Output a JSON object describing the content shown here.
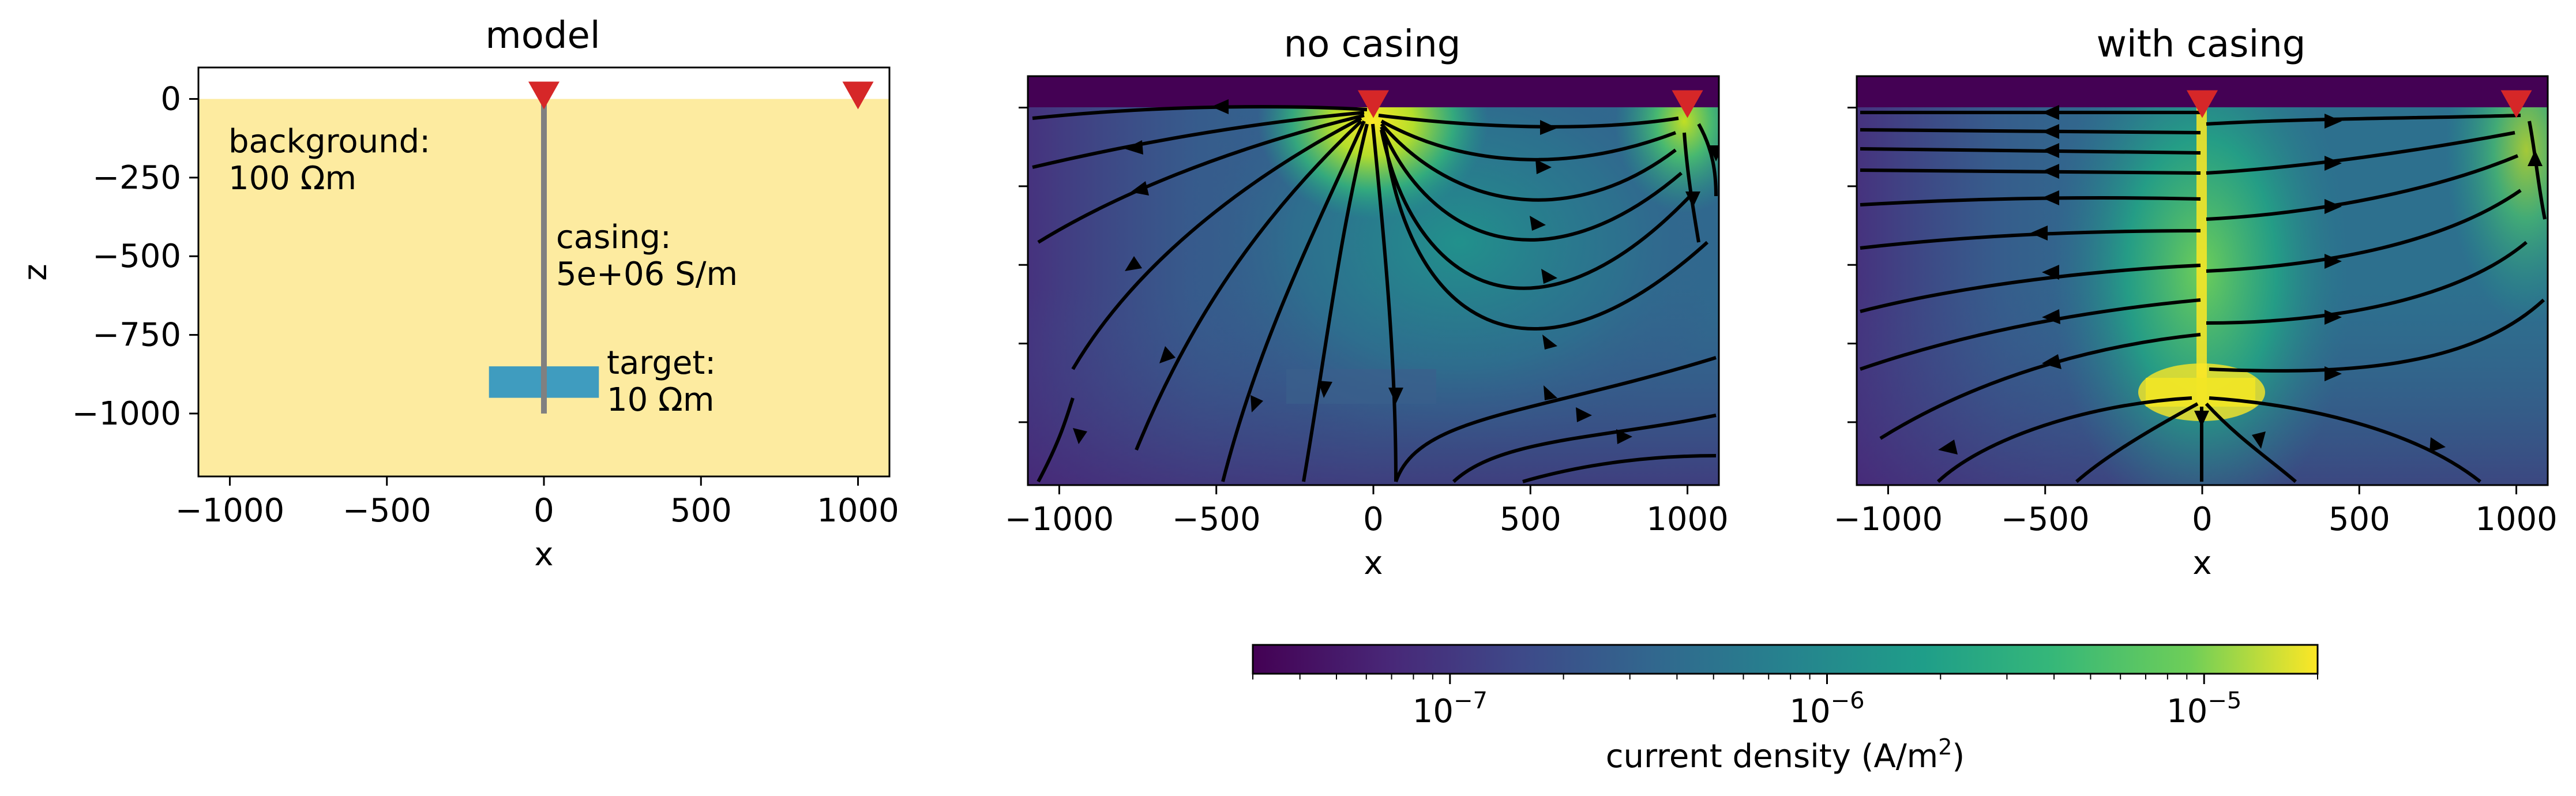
{
  "chart_data": [
    {
      "id": "model",
      "type": "other",
      "title": "model",
      "xlabel": "x",
      "ylabel": "z",
      "xlim": [
        -1100,
        1100
      ],
      "ylim": [
        -1200,
        100
      ],
      "xticks": [
        -1000,
        -500,
        0,
        500,
        1000
      ],
      "yticks": [
        0,
        -250,
        -500,
        -750,
        -1000
      ],
      "xtick_labels": [
        "−1000",
        "−500",
        "0",
        "500",
        "1000"
      ],
      "ytick_labels": [
        "0",
        "−250",
        "−500",
        "−750",
        "−1000"
      ],
      "background": {
        "label_line1": "background:",
        "label_line2": "100 Ωm",
        "color": "#fdeba0",
        "z_top": 0
      },
      "casing": {
        "label_line1": "casing:",
        "label_line2": "5e+06 S/m",
        "color": "#808080",
        "x": 0,
        "z_top": 0,
        "z_bottom": -1000
      },
      "target": {
        "label_line1": "target:",
        "label_line2": "10 Ωm",
        "color": "#3f9cbf",
        "x_range": [
          -175,
          175
        ],
        "z_range": [
          -850,
          -950
        ]
      },
      "sources": [
        {
          "x": 0,
          "z": 0
        },
        {
          "x": 1000,
          "z": 0
        }
      ],
      "marker_color": "#d62728"
    },
    {
      "id": "no-casing",
      "type": "heatmap",
      "title": "no casing",
      "xlabel": "x",
      "xlim": [
        -1100,
        1100
      ],
      "ylim": [
        -1200,
        100
      ],
      "xticks": [
        -1000,
        -500,
        0,
        500,
        1000
      ],
      "xtick_labels": [
        "−1000",
        "−500",
        "0",
        "500",
        "1000"
      ],
      "yticks": [
        0,
        -250,
        -500,
        -750,
        -1000
      ],
      "ytick_labels_shown": false,
      "sources": [
        {
          "x": 0,
          "z": 0
        },
        {
          "x": 1000,
          "z": 0
        }
      ],
      "casing_present": false,
      "target": {
        "x_range": [
          -175,
          175
        ],
        "z_range": [
          -850,
          -950
        ]
      },
      "streamlines": true
    },
    {
      "id": "with-casing",
      "type": "heatmap",
      "title": "with casing",
      "xlabel": "x",
      "xlim": [
        -1100,
        1100
      ],
      "ylim": [
        -1200,
        100
      ],
      "xticks": [
        -1000,
        -500,
        0,
        500,
        1000
      ],
      "xtick_labels": [
        "−1000",
        "−500",
        "0",
        "500",
        "1000"
      ],
      "yticks": [
        0,
        -250,
        -500,
        -750,
        -1000
      ],
      "ytick_labels_shown": false,
      "sources": [
        {
          "x": 0,
          "z": 0
        },
        {
          "x": 1000,
          "z": 0
        }
      ],
      "casing_present": true,
      "target": {
        "x_range": [
          -175,
          175
        ],
        "z_range": [
          -850,
          -950
        ]
      },
      "streamlines": true
    }
  ],
  "colorbar": {
    "label_main": "current density (A/m",
    "label_sup": "2",
    "label_end": ")",
    "scale": "log",
    "colormap": "viridis",
    "range": [
      3e-08,
      2e-05
    ],
    "ticks": [
      {
        "value": 1e-07,
        "base": "10",
        "exp": "−7"
      },
      {
        "value": 1e-06,
        "base": "10",
        "exp": "−6"
      },
      {
        "value": 1e-05,
        "base": "10",
        "exp": "−5"
      }
    ]
  }
}
